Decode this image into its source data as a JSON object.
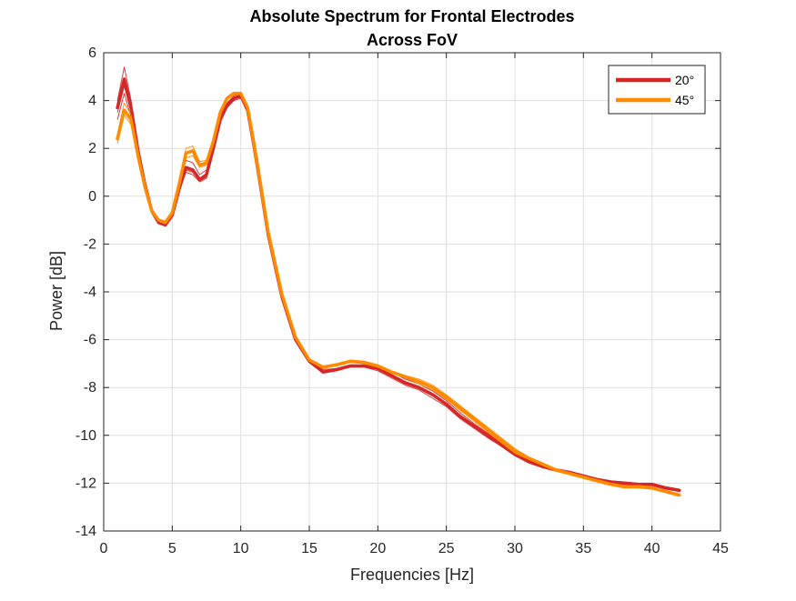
{
  "chart_data": {
    "type": "line",
    "title": "Absolute Spectrum for Frontal Electrodes",
    "subtitle": "Across FoV",
    "xlabel": "Frequencies [Hz]",
    "ylabel": "Power [dB]",
    "xlim": [
      0,
      45
    ],
    "ylim": [
      -14,
      6
    ],
    "xticks": [
      0,
      5,
      10,
      15,
      20,
      25,
      30,
      35,
      40,
      45
    ],
    "yticks": [
      -14,
      -12,
      -10,
      -8,
      -6,
      -4,
      -2,
      0,
      2,
      4,
      6
    ],
    "grid": true,
    "legend_position": "top-right",
    "x": [
      1,
      1.5,
      2,
      2.5,
      3,
      3.5,
      4,
      4.5,
      5,
      5.5,
      6,
      6.5,
      7,
      7.5,
      8,
      8.5,
      9,
      9.5,
      10,
      10.5,
      11,
      11.5,
      12,
      13,
      14,
      15,
      16,
      17,
      18,
      19,
      20,
      21,
      22,
      23,
      24,
      25,
      26,
      27,
      28,
      29,
      30,
      31,
      32,
      33,
      34,
      35,
      36,
      37,
      38,
      39,
      40,
      41,
      42
    ],
    "series": [
      {
        "name": "20°",
        "color": "#D62728",
        "values": [
          3.7,
          4.9,
          3.7,
          1.9,
          0.5,
          -0.6,
          -1.1,
          -1.2,
          -0.8,
          0.3,
          1.2,
          1.1,
          0.7,
          0.9,
          2.0,
          3.2,
          3.8,
          4.1,
          4.2,
          3.6,
          2.0,
          0.2,
          -1.6,
          -4.2,
          -6.0,
          -6.9,
          -7.35,
          -7.25,
          -7.1,
          -7.1,
          -7.2,
          -7.5,
          -7.8,
          -8.0,
          -8.3,
          -8.7,
          -9.2,
          -9.6,
          -10.0,
          -10.4,
          -10.8,
          -11.1,
          -11.3,
          -11.45,
          -11.55,
          -11.7,
          -11.85,
          -11.95,
          -12.0,
          -12.05,
          -12.05,
          -12.2,
          -12.3
        ],
        "individual_traces": [
          [
            4.0,
            5.4,
            4.0,
            2.0,
            0.6,
            -0.5,
            -1.0,
            -1.1,
            -0.7,
            0.5,
            1.5,
            1.4,
            0.9,
            1.1,
            2.2,
            3.4,
            3.9,
            4.2,
            4.3,
            3.7,
            2.1,
            0.3,
            -1.5,
            -4.1,
            -5.9,
            -6.85,
            -7.25,
            -7.2,
            -7.05,
            -7.05,
            -7.1,
            -7.35,
            -7.65,
            -7.85,
            -8.15,
            -8.55,
            -9.05,
            -9.5,
            -9.9,
            -10.3,
            -10.7,
            -11.0,
            -11.25,
            -11.4,
            -11.5,
            -11.65,
            -11.8,
            -11.9,
            -11.95,
            -12.0,
            -12.0,
            -12.15,
            -12.25
          ],
          [
            3.5,
            4.6,
            3.5,
            1.8,
            0.4,
            -0.7,
            -1.15,
            -1.25,
            -0.85,
            0.2,
            1.0,
            0.9,
            0.6,
            0.75,
            1.9,
            3.1,
            3.7,
            4.0,
            4.1,
            3.55,
            1.95,
            0.15,
            -1.65,
            -4.25,
            -6.05,
            -6.95,
            -7.4,
            -7.3,
            -7.15,
            -7.15,
            -7.3,
            -7.6,
            -7.9,
            -8.1,
            -8.45,
            -8.8,
            -9.3,
            -9.7,
            -10.1,
            -10.45,
            -10.85,
            -11.15,
            -11.35,
            -11.5,
            -11.6,
            -11.75,
            -11.9,
            -12.0,
            -12.05,
            -12.1,
            -12.1,
            -12.25,
            -12.35
          ],
          [
            3.2,
            4.3,
            3.3,
            1.7,
            0.45,
            -0.65,
            -1.1,
            -1.2,
            -0.8,
            0.25,
            1.1,
            1.0,
            0.65,
            0.8,
            1.95,
            3.15,
            3.75,
            4.05,
            4.15,
            3.6,
            2.0,
            0.2,
            -1.6,
            -4.2,
            -6.0,
            -6.9,
            -7.35,
            -7.25,
            -7.1,
            -7.1,
            -7.25,
            -7.55,
            -7.85,
            -8.05,
            -8.35,
            -8.75,
            -9.25,
            -9.65,
            -10.05,
            -10.4,
            -10.8,
            -11.1,
            -11.3,
            -11.45,
            -11.55,
            -11.7,
            -11.85,
            -11.95,
            -12.0,
            -12.05,
            -12.05,
            -12.2,
            -12.3
          ]
        ]
      },
      {
        "name": "45°",
        "color": "#FF8C00",
        "values": [
          2.4,
          3.6,
          3.2,
          1.7,
          0.4,
          -0.6,
          -1.0,
          -1.1,
          -0.7,
          0.5,
          1.8,
          1.9,
          1.3,
          1.4,
          2.3,
          3.5,
          4.1,
          4.3,
          4.3,
          3.7,
          2.1,
          0.3,
          -1.5,
          -4.1,
          -5.9,
          -6.85,
          -7.15,
          -7.05,
          -6.9,
          -6.95,
          -7.1,
          -7.35,
          -7.55,
          -7.75,
          -8.0,
          -8.4,
          -8.85,
          -9.3,
          -9.75,
          -10.2,
          -10.65,
          -10.95,
          -11.2,
          -11.45,
          -11.6,
          -11.75,
          -11.9,
          -12.05,
          -12.15,
          -12.15,
          -12.2,
          -12.35,
          -12.5
        ],
        "individual_traces": [
          [
            2.6,
            3.9,
            3.4,
            1.8,
            0.5,
            -0.55,
            -0.95,
            -1.05,
            -0.65,
            0.6,
            2.0,
            2.1,
            1.45,
            1.5,
            2.4,
            3.6,
            4.15,
            4.35,
            4.35,
            3.75,
            2.15,
            0.35,
            -1.45,
            -4.05,
            -5.85,
            -6.8,
            -7.1,
            -7.0,
            -6.85,
            -6.9,
            -7.05,
            -7.3,
            -7.5,
            -7.65,
            -7.9,
            -8.3,
            -8.75,
            -9.2,
            -9.65,
            -10.1,
            -10.55,
            -10.9,
            -11.15,
            -11.4,
            -11.55,
            -11.7,
            -11.85,
            -12.0,
            -12.1,
            -12.1,
            -12.15,
            -12.3,
            -12.45
          ],
          [
            2.2,
            3.4,
            3.0,
            1.6,
            0.35,
            -0.65,
            -1.05,
            -1.15,
            -0.75,
            0.4,
            1.6,
            1.7,
            1.2,
            1.3,
            2.2,
            3.4,
            4.05,
            4.25,
            4.25,
            3.65,
            2.05,
            0.25,
            -1.55,
            -4.15,
            -5.95,
            -6.9,
            -7.2,
            -7.1,
            -6.95,
            -7.0,
            -7.15,
            -7.4,
            -7.6,
            -7.85,
            -8.1,
            -8.5,
            -8.95,
            -9.4,
            -9.85,
            -10.3,
            -10.75,
            -11.0,
            -11.25,
            -11.5,
            -11.65,
            -11.8,
            -11.95,
            -12.1,
            -12.2,
            -12.2,
            -12.25,
            -12.4,
            -12.55
          ]
        ]
      }
    ]
  }
}
